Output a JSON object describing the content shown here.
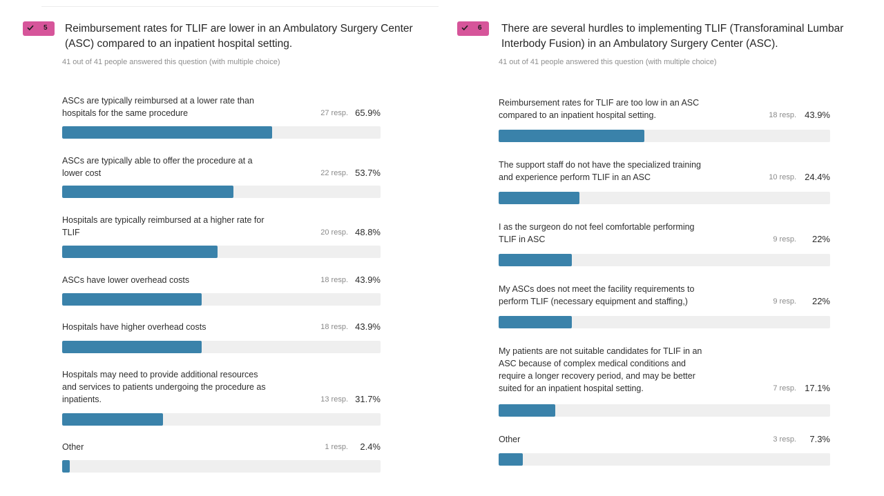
{
  "colors": {
    "badge": "#d6559a",
    "bar_fill": "#3a82aa",
    "bar_track": "#efefef"
  },
  "questions": [
    {
      "number": "5",
      "icon": "check-icon",
      "title_line1": "Reimbursement rates for TLIF are lower in an Ambulatory Surgery Center",
      "title_line2": "(ASC) compared to an inpatient hospital setting.",
      "answered": "41 out of 41 people answered this question (with multiple choice)",
      "options": [
        {
          "lines": [
            "ASCs are typically reimbursed at a lower rate than",
            "hospitals for the same procedure"
          ],
          "resp": "27 resp.",
          "pct": "65.9%",
          "fraction": 0.659
        },
        {
          "lines": [
            "ASCs are typically able to offer the procedure at a",
            "lower cost"
          ],
          "resp": "22 resp.",
          "pct": "53.7%",
          "fraction": 0.537
        },
        {
          "lines": [
            "Hospitals are typically reimbursed at a higher rate for",
            "TLIF"
          ],
          "resp": "20 resp.",
          "pct": "48.8%",
          "fraction": 0.488
        },
        {
          "lines": [
            "ASCs have lower overhead costs"
          ],
          "resp": "18 resp.",
          "pct": "43.9%",
          "fraction": 0.439
        },
        {
          "lines": [
            "Hospitals have higher overhead costs"
          ],
          "resp": "18 resp.",
          "pct": "43.9%",
          "fraction": 0.439
        },
        {
          "lines": [
            "Hospitals may need to provide additional resources",
            "and services to patients undergoing the procedure as",
            "inpatients."
          ],
          "resp": "13 resp.",
          "pct": "31.7%",
          "fraction": 0.317
        },
        {
          "lines": [
            "Other"
          ],
          "resp": "1 resp.",
          "pct": "2.4%",
          "fraction": 0.024
        }
      ]
    },
    {
      "number": "6",
      "icon": "check-icon",
      "title_line1": "There are several hurdles to implementing TLIF (Transforaminal Lumbar",
      "title_line2": "Interbody Fusion) in an Ambulatory Surgery Center (ASC).",
      "answered": "41 out of 41 people answered this question (with multiple choice)",
      "options": [
        {
          "lines": [
            "Reimbursement rates for TLIF are too low in an ASC",
            "compared to an inpatient hospital setting."
          ],
          "resp": "18 resp.",
          "pct": "43.9%",
          "fraction": 0.439
        },
        {
          "lines": [
            "The support staff do not have the specialized training",
            "and experience perform TLIF in an ASC"
          ],
          "resp": "10 resp.",
          "pct": "24.4%",
          "fraction": 0.244
        },
        {
          "lines": [
            "I as the surgeon do not feel comfortable performing",
            "TLIF in ASC"
          ],
          "resp": "9 resp.",
          "pct": "22%",
          "fraction": 0.22
        },
        {
          "lines": [
            "My ASCs does not meet the facility requirements to",
            "perform TLIF (necessary equipment and staffing,)"
          ],
          "resp": "9 resp.",
          "pct": "22%",
          "fraction": 0.22
        },
        {
          "lines": [
            "My patients are not suitable candidates for TLIF in an",
            "ASC because of complex medical conditions and",
            "require a longer recovery period, and may be better",
            "suited for an inpatient hospital setting."
          ],
          "resp": "7 resp.",
          "pct": "17.1%",
          "fraction": 0.171
        },
        {
          "lines": [
            "Other"
          ],
          "resp": "3 resp.",
          "pct": "7.3%",
          "fraction": 0.073
        }
      ]
    }
  ]
}
